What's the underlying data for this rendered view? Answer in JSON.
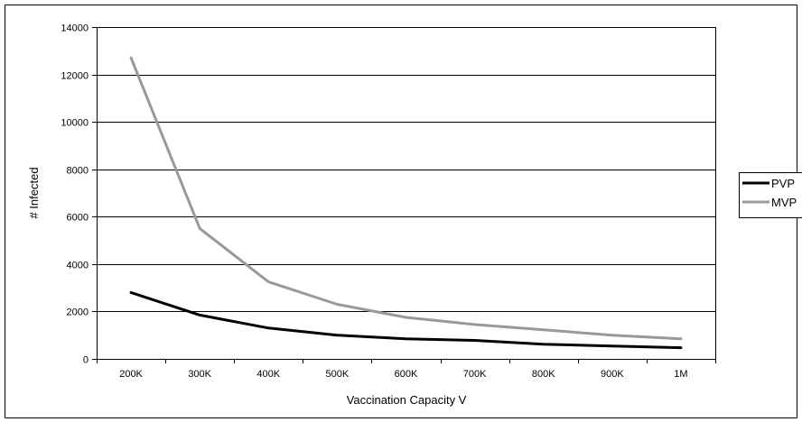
{
  "chart_data": {
    "type": "line",
    "title": "",
    "xlabel": "Vaccination Capacity  V",
    "ylabel": "# Infected",
    "categories": [
      "200K",
      "300K",
      "400K",
      "500K",
      "600K",
      "700K",
      "800K",
      "900K",
      "1M"
    ],
    "series": [
      {
        "name": "PVP",
        "color": "#000000",
        "values": [
          2800,
          1850,
          1300,
          1000,
          850,
          780,
          620,
          540,
          470
        ]
      },
      {
        "name": "MVP",
        "color": "#999999",
        "values": [
          12700,
          5500,
          3250,
          2300,
          1750,
          1450,
          1230,
          1000,
          850
        ]
      }
    ],
    "ylim": [
      0,
      14000
    ],
    "yticks": [
      "0",
      "2000",
      "4000",
      "6000",
      "8000",
      "10000",
      "12000",
      "14000"
    ],
    "grid": "horizontal",
    "legend_position": "right"
  }
}
